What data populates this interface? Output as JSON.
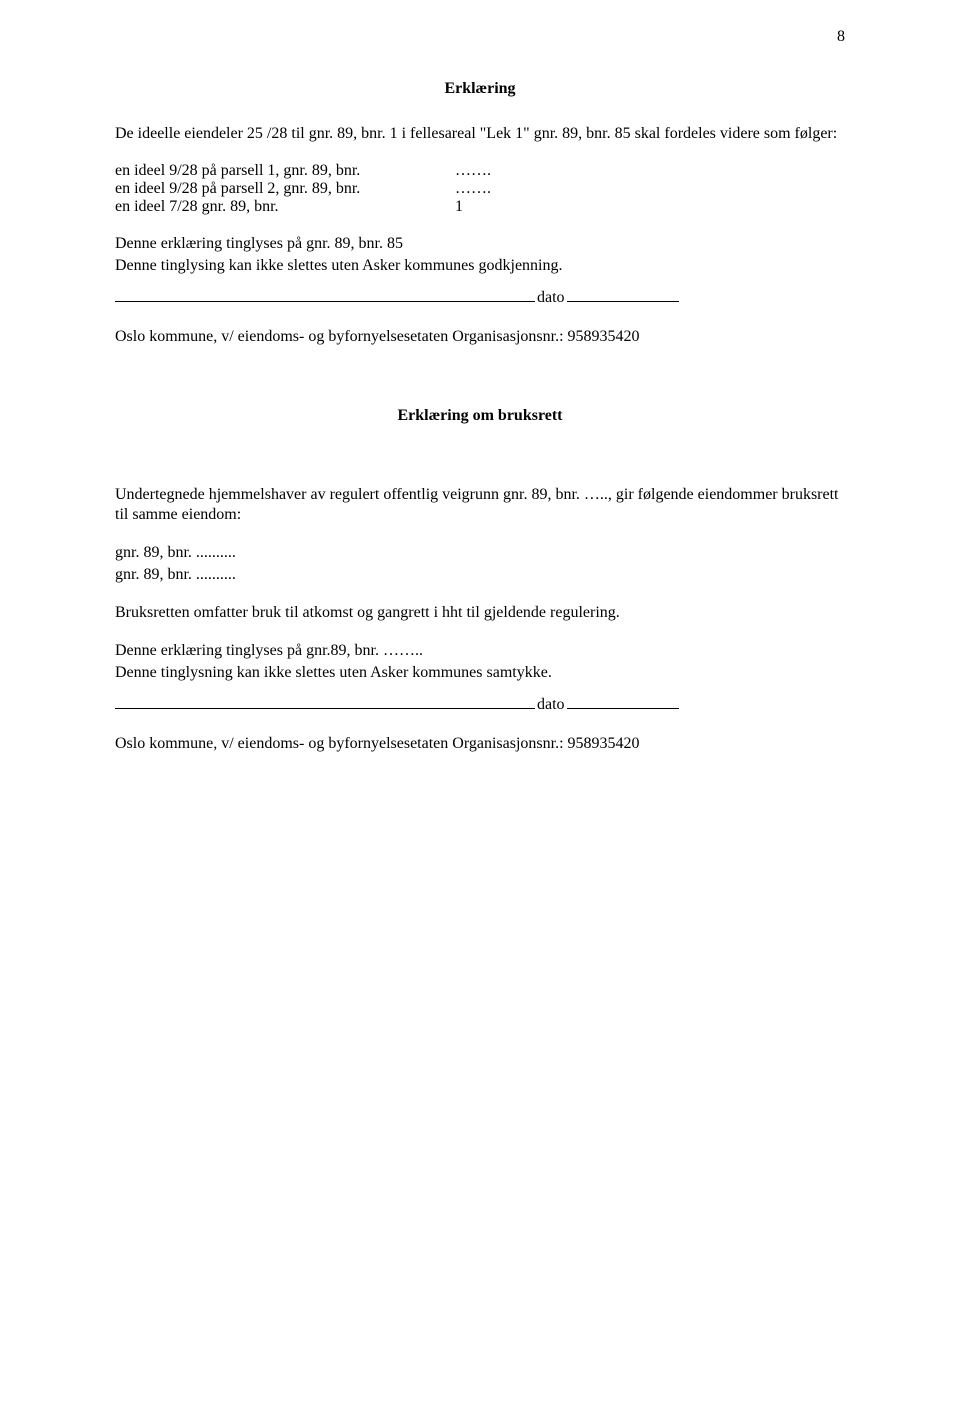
{
  "page_number": "8",
  "section1": {
    "title": "Erklæring",
    "intro": "De ideelle eiendeler 25 /28 til gnr. 89, bnr. 1 i fellesareal \"Lek 1\" gnr. 89, bnr. 85 skal fordeles videre som følger:",
    "lines": [
      {
        "col1": "en ideel 9/28 på parsell  1, gnr.  89, bnr.",
        "col2": "……."
      },
      {
        "col1": "en ideel 9/28 på parsell  2, gnr.  89, bnr.",
        "col2": "……."
      },
      {
        "col1": "en ideel 7/28                     gnr.  89, bnr.",
        "col2": "1"
      }
    ],
    "tinglys1": "Denne erklæring tinglyses på gnr.  89, bnr. 85",
    "tinglys2": "Denne tinglysing kan ikke slettes uten Asker kommunes godkjenning.",
    "dato": "dato",
    "org_line_prefix": "Oslo kommune, v/ eiendoms- og byfornyelsesetaten     ",
    "org_line_suffix": "Organisasjonsnr.: 958935420"
  },
  "section2": {
    "title": "Erklæring om bruksrett",
    "intro": "Undertegnede hjemmelshaver av regulert offentlig veigrunn gnr. 89, bnr. ….., gir følgende eiendommer bruksrett til samme eiendom:",
    "gnr1": "gnr.  89,   bnr. ..........",
    "gnr2": "gnr.  89,   bnr. ..........",
    "bruksrett": "Bruksretten omfatter bruk til atkomst og gangrett i hht til gjeldende regulering.",
    "tinglys1": "Denne erklæring tinglyses på gnr.89, bnr. ……..",
    "tinglys2": "Denne tinglysning kan ikke slettes uten Asker kommunes samtykke.",
    "dato": "dato",
    "org_line_prefix": "Oslo kommune, v/ eiendoms- og byfornyelsesetaten     ",
    "org_line_suffix": "Organisasjonsnr.: 958935420"
  }
}
